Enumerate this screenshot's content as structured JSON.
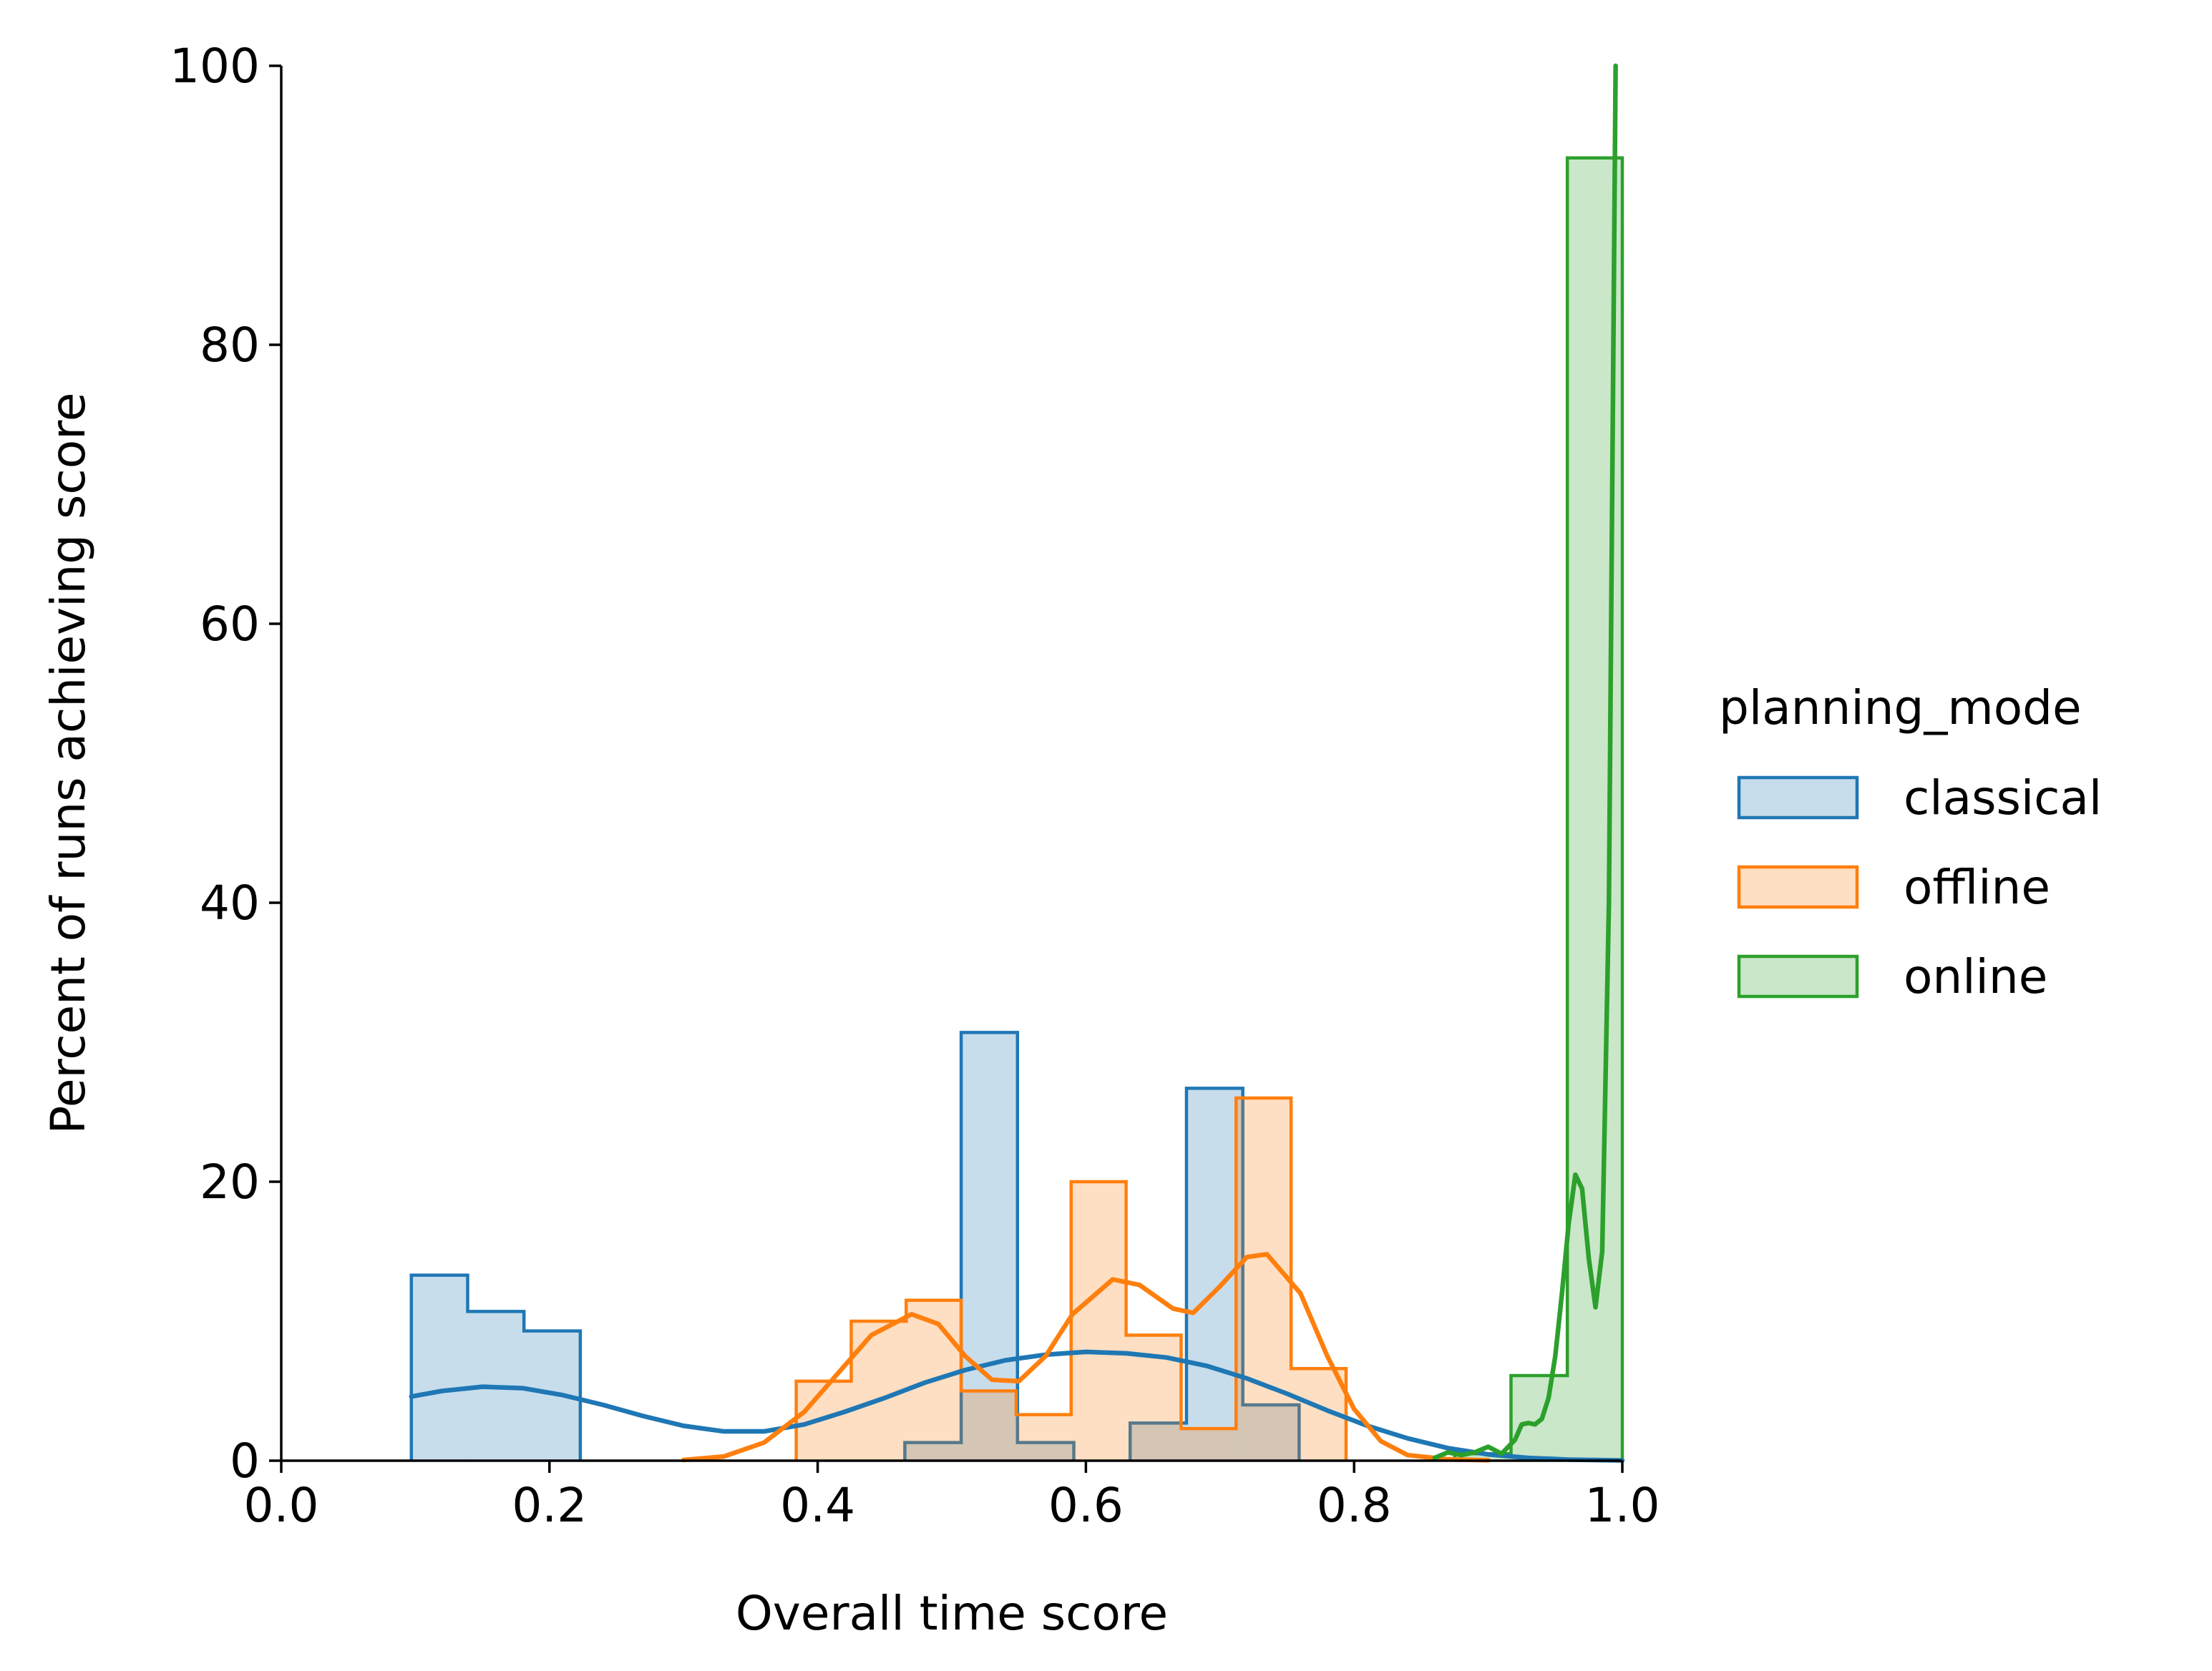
{
  "chart_data": {
    "type": "histogram",
    "xlabel": "Overall time score",
    "ylabel": "Percent of runs achieving score",
    "xlim": [
      0.0,
      1.0
    ],
    "ylim": [
      0,
      100
    ],
    "x_ticks": [
      "0.0",
      "0.2",
      "0.4",
      "0.6",
      "0.8",
      "1.0"
    ],
    "y_ticks": [
      "0",
      "20",
      "40",
      "60",
      "80",
      "100"
    ],
    "grid": false,
    "legend_title": "planning_mode",
    "legend_position": "center-right",
    "series": [
      {
        "name": "classical",
        "color": "#1f77b4",
        "bins": [
          {
            "x0": 0.097,
            "x1": 0.139,
            "value": 13.3
          },
          {
            "x0": 0.139,
            "x1": 0.181,
            "value": 10.7
          },
          {
            "x0": 0.181,
            "x1": 0.223,
            "value": 9.3
          },
          {
            "x0": 0.465,
            "x1": 0.507,
            "value": 1.3
          },
          {
            "x0": 0.507,
            "x1": 0.549,
            "value": 30.7
          },
          {
            "x0": 0.549,
            "x1": 0.591,
            "value": 1.3
          },
          {
            "x0": 0.633,
            "x1": 0.675,
            "value": 2.7
          },
          {
            "x0": 0.675,
            "x1": 0.717,
            "value": 26.7
          },
          {
            "x0": 0.717,
            "x1": 0.759,
            "value": 4.0
          }
        ],
        "kde": [
          [
            0.097,
            4.6
          ],
          [
            0.12,
            5.0
          ],
          [
            0.15,
            5.3
          ],
          [
            0.18,
            5.2
          ],
          [
            0.21,
            4.7
          ],
          [
            0.24,
            4.0
          ],
          [
            0.27,
            3.2
          ],
          [
            0.3,
            2.5
          ],
          [
            0.33,
            2.1
          ],
          [
            0.36,
            2.1
          ],
          [
            0.39,
            2.6
          ],
          [
            0.42,
            3.5
          ],
          [
            0.45,
            4.5
          ],
          [
            0.48,
            5.6
          ],
          [
            0.51,
            6.5
          ],
          [
            0.54,
            7.2
          ],
          [
            0.57,
            7.6
          ],
          [
            0.6,
            7.8
          ],
          [
            0.63,
            7.7
          ],
          [
            0.66,
            7.4
          ],
          [
            0.69,
            6.8
          ],
          [
            0.72,
            5.9
          ],
          [
            0.75,
            4.8
          ],
          [
            0.78,
            3.6
          ],
          [
            0.81,
            2.5
          ],
          [
            0.84,
            1.6
          ],
          [
            0.87,
            0.9
          ],
          [
            0.9,
            0.45
          ],
          [
            0.93,
            0.2
          ],
          [
            0.96,
            0.08
          ],
          [
            1.0,
            0.02
          ]
        ]
      },
      {
        "name": "offline",
        "color": "#ff7f0e",
        "bins": [
          {
            "x0": 0.384,
            "x1": 0.425,
            "value": 5.7
          },
          {
            "x0": 0.425,
            "x1": 0.466,
            "value": 10.0
          },
          {
            "x0": 0.466,
            "x1": 0.507,
            "value": 11.5
          },
          {
            "x0": 0.507,
            "x1": 0.548,
            "value": 5.0
          },
          {
            "x0": 0.548,
            "x1": 0.589,
            "value": 3.3
          },
          {
            "x0": 0.589,
            "x1": 0.63,
            "value": 20.0
          },
          {
            "x0": 0.63,
            "x1": 0.671,
            "value": 9.0
          },
          {
            "x0": 0.671,
            "x1": 0.712,
            "value": 2.3
          },
          {
            "x0": 0.712,
            "x1": 0.753,
            "value": 26.0
          },
          {
            "x0": 0.753,
            "x1": 0.794,
            "value": 6.6
          }
        ],
        "kde": [
          [
            0.3,
            0.05
          ],
          [
            0.33,
            0.3
          ],
          [
            0.36,
            1.3
          ],
          [
            0.39,
            3.5
          ],
          [
            0.42,
            6.8
          ],
          [
            0.44,
            9.0
          ],
          [
            0.47,
            10.5
          ],
          [
            0.49,
            9.8
          ],
          [
            0.51,
            7.5
          ],
          [
            0.53,
            5.8
          ],
          [
            0.55,
            5.7
          ],
          [
            0.57,
            7.5
          ],
          [
            0.59,
            10.5
          ],
          [
            0.62,
            13.0
          ],
          [
            0.64,
            12.6
          ],
          [
            0.665,
            10.9
          ],
          [
            0.68,
            10.6
          ],
          [
            0.7,
            12.5
          ],
          [
            0.72,
            14.6
          ],
          [
            0.735,
            14.8
          ],
          [
            0.76,
            12.0
          ],
          [
            0.78,
            7.5
          ],
          [
            0.8,
            3.7
          ],
          [
            0.82,
            1.4
          ],
          [
            0.84,
            0.4
          ],
          [
            0.87,
            0.1
          ],
          [
            0.9,
            0.03
          ]
        ]
      },
      {
        "name": "online",
        "color": "#2ca02c",
        "bins": [
          {
            "x0": 0.875,
            "x1": 0.917,
            "value": 0.5
          },
          {
            "x0": 0.917,
            "x1": 0.959,
            "value": 6.1
          },
          {
            "x0": 0.959,
            "x1": 1.0,
            "value": 93.4
          }
        ],
        "kde": [
          [
            0.86,
            0.2
          ],
          [
            0.87,
            0.6
          ],
          [
            0.88,
            0.4
          ],
          [
            0.89,
            0.6
          ],
          [
            0.9,
            1.0
          ],
          [
            0.91,
            0.5
          ],
          [
            0.92,
            1.5
          ],
          [
            0.925,
            2.6
          ],
          [
            0.93,
            2.7
          ],
          [
            0.935,
            2.6
          ],
          [
            0.94,
            3.0
          ],
          [
            0.945,
            4.5
          ],
          [
            0.95,
            7.5
          ],
          [
            0.955,
            12.0
          ],
          [
            0.96,
            17.0
          ],
          [
            0.965,
            20.5
          ],
          [
            0.97,
            19.5
          ],
          [
            0.975,
            14.5
          ],
          [
            0.98,
            11.0
          ],
          [
            0.985,
            15.0
          ],
          [
            0.99,
            40.0
          ],
          [
            0.995,
            100.0
          ]
        ]
      }
    ]
  }
}
